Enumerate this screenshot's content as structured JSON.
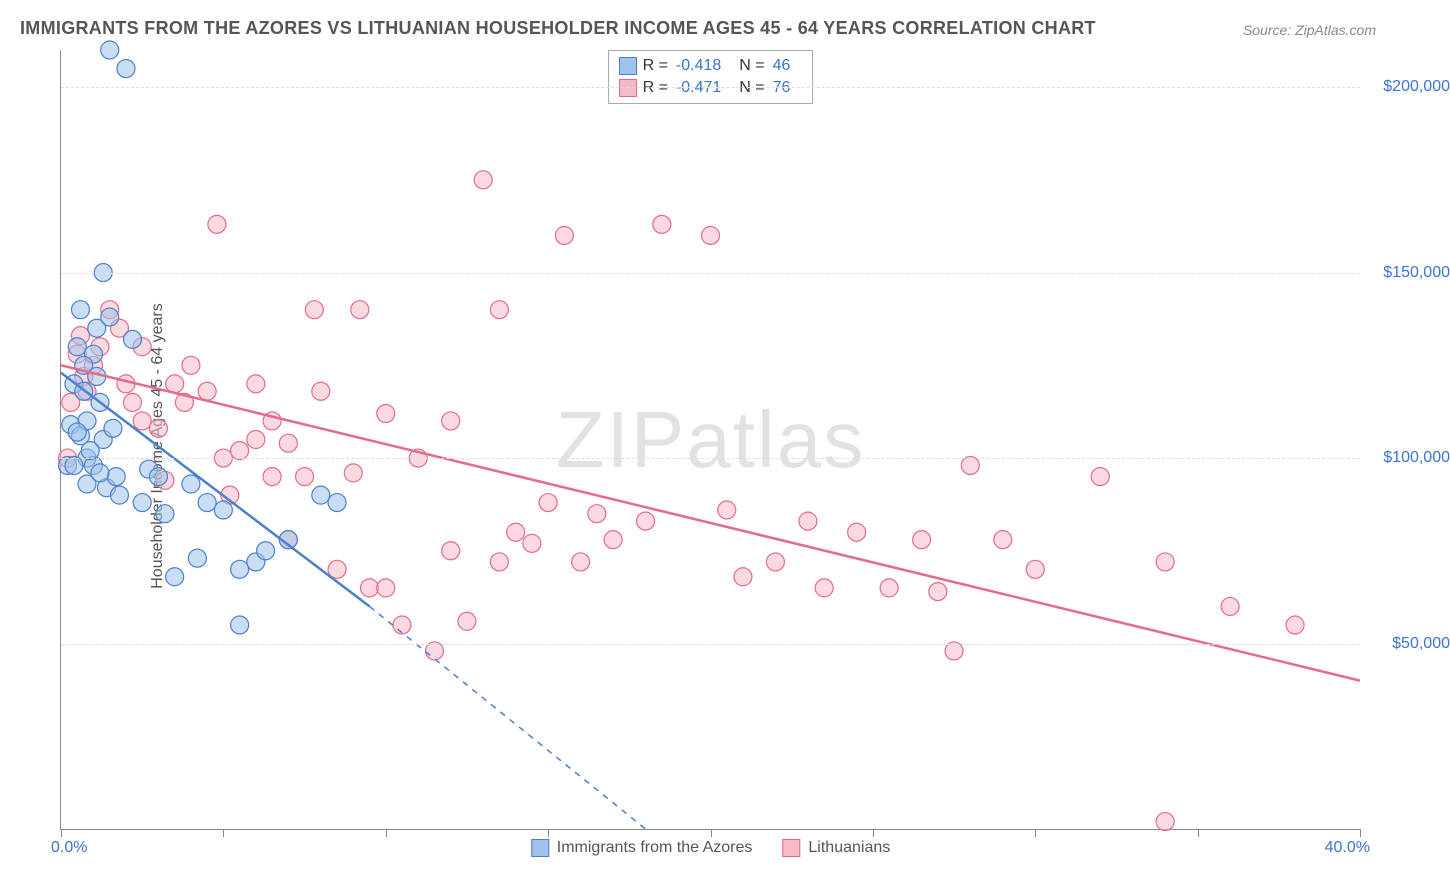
{
  "title": "IMMIGRANTS FROM THE AZORES VS LITHUANIAN HOUSEHOLDER INCOME AGES 45 - 64 YEARS CORRELATION CHART",
  "source": "Source: ZipAtlas.com",
  "watermark": "ZIPatlas",
  "ylabel": "Householder Income Ages 45 - 64 years",
  "x_left": "0.0%",
  "x_right": "40.0%",
  "chart": {
    "type": "scatter-with-regression",
    "background_color": "#ffffff",
    "grid_color": "#dddddd",
    "axis_color": "#888888",
    "title_fontsize": 18,
    "label_fontsize": 16,
    "tick_label_color": "#3b74d1",
    "xlim": [
      0,
      40
    ],
    "ylim": [
      0,
      210000
    ],
    "y_ticks": [
      50000,
      100000,
      150000,
      200000
    ],
    "y_tick_labels": [
      "$50,000",
      "$100,000",
      "$150,000",
      "$200,000"
    ],
    "x_tick_positions": [
      0,
      5,
      10,
      15,
      20,
      25,
      30,
      35,
      40
    ],
    "point_radius": 9,
    "point_opacity": 0.55,
    "line_width": 2.5,
    "series": [
      {
        "name": "Immigrants from the Azores",
        "color_fill": "#9fc2ea",
        "color_stroke": "#4a80cc",
        "r_value": "-0.418",
        "n_value": "46",
        "regression": {
          "x1": 0,
          "y1": 123000,
          "x2": 9.5,
          "y2": 60000,
          "solid_until_x": 9.5,
          "dash_to_x": 18,
          "dash_to_y": 0
        },
        "points": [
          [
            0.2,
            98000
          ],
          [
            0.3,
            109000
          ],
          [
            0.4,
            120000
          ],
          [
            0.5,
            130000
          ],
          [
            0.6,
            140000
          ],
          [
            0.7,
            118000
          ],
          [
            0.8,
            100000
          ],
          [
            1.0,
            128000
          ],
          [
            1.1,
            135000
          ],
          [
            1.2,
            115000
          ],
          [
            1.3,
            105000
          ],
          [
            1.4,
            92000
          ],
          [
            1.5,
            138000
          ],
          [
            1.6,
            108000
          ],
          [
            1.7,
            95000
          ],
          [
            1.8,
            90000
          ],
          [
            1.3,
            150000
          ],
          [
            1.5,
            210000
          ],
          [
            2.0,
            205000
          ],
          [
            2.2,
            132000
          ],
          [
            2.5,
            88000
          ],
          [
            2.7,
            97000
          ],
          [
            3.0,
            95000
          ],
          [
            3.2,
            85000
          ],
          [
            3.5,
            68000
          ],
          [
            4.0,
            93000
          ],
          [
            4.2,
            73000
          ],
          [
            4.5,
            88000
          ],
          [
            5.0,
            86000
          ],
          [
            5.5,
            55000
          ],
          [
            5.5,
            70000
          ],
          [
            6.0,
            72000
          ],
          [
            6.3,
            75000
          ],
          [
            7.0,
            78000
          ],
          [
            8.0,
            90000
          ],
          [
            8.5,
            88000
          ],
          [
            1.0,
            98000
          ],
          [
            0.9,
            102000
          ],
          [
            0.6,
            106000
          ],
          [
            0.7,
            125000
          ],
          [
            0.8,
            110000
          ],
          [
            0.8,
            93000
          ],
          [
            0.5,
            107000
          ],
          [
            0.4,
            98000
          ],
          [
            1.1,
            122000
          ],
          [
            1.2,
            96000
          ]
        ]
      },
      {
        "name": "Lithuanians",
        "color_fill": "#f5b9c7",
        "color_stroke": "#e66a8b",
        "r_value": "-0.471",
        "n_value": "76",
        "regression": {
          "x1": 0,
          "y1": 125000,
          "x2": 40,
          "y2": 40000,
          "solid_until_x": 40
        },
        "points": [
          [
            0.2,
            100000
          ],
          [
            0.3,
            115000
          ],
          [
            0.5,
            128000
          ],
          [
            0.6,
            133000
          ],
          [
            0.7,
            122000
          ],
          [
            0.8,
            118000
          ],
          [
            1.0,
            125000
          ],
          [
            1.2,
            130000
          ],
          [
            1.5,
            140000
          ],
          [
            1.8,
            135000
          ],
          [
            2.0,
            120000
          ],
          [
            2.2,
            115000
          ],
          [
            2.5,
            110000
          ],
          [
            2.5,
            130000
          ],
          [
            3.0,
            108000
          ],
          [
            3.2,
            94000
          ],
          [
            3.5,
            120000
          ],
          [
            3.8,
            115000
          ],
          [
            4.0,
            125000
          ],
          [
            4.5,
            118000
          ],
          [
            4.8,
            163000
          ],
          [
            5.0,
            100000
          ],
          [
            5.2,
            90000
          ],
          [
            5.5,
            102000
          ],
          [
            6.0,
            105000
          ],
          [
            6.0,
            120000
          ],
          [
            6.5,
            95000
          ],
          [
            6.5,
            110000
          ],
          [
            7.0,
            78000
          ],
          [
            7.0,
            104000
          ],
          [
            7.5,
            95000
          ],
          [
            7.8,
            140000
          ],
          [
            8.0,
            118000
          ],
          [
            8.5,
            70000
          ],
          [
            9.0,
            96000
          ],
          [
            9.2,
            140000
          ],
          [
            9.5,
            65000
          ],
          [
            10.0,
            65000
          ],
          [
            10.0,
            112000
          ],
          [
            10.5,
            55000
          ],
          [
            11.0,
            100000
          ],
          [
            11.5,
            48000
          ],
          [
            12.0,
            75000
          ],
          [
            12.0,
            110000
          ],
          [
            12.5,
            56000
          ],
          [
            13.0,
            175000
          ],
          [
            13.5,
            72000
          ],
          [
            13.5,
            140000
          ],
          [
            14.0,
            80000
          ],
          [
            14.5,
            77000
          ],
          [
            15.0,
            88000
          ],
          [
            15.5,
            160000
          ],
          [
            16.0,
            72000
          ],
          [
            16.5,
            85000
          ],
          [
            17.0,
            78000
          ],
          [
            18.0,
            83000
          ],
          [
            18.5,
            163000
          ],
          [
            20.0,
            160000
          ],
          [
            20.5,
            86000
          ],
          [
            21.0,
            68000
          ],
          [
            22.0,
            72000
          ],
          [
            23.0,
            83000
          ],
          [
            23.5,
            65000
          ],
          [
            24.5,
            80000
          ],
          [
            25.5,
            65000
          ],
          [
            26.5,
            78000
          ],
          [
            27.0,
            64000
          ],
          [
            27.5,
            48000
          ],
          [
            28.0,
            98000
          ],
          [
            29.0,
            78000
          ],
          [
            30.0,
            70000
          ],
          [
            32.0,
            95000
          ],
          [
            34.0,
            72000
          ],
          [
            34.0,
            2000
          ],
          [
            36.0,
            60000
          ],
          [
            38.0,
            55000
          ]
        ]
      }
    ]
  },
  "legend_series1": "Immigrants from the Azores",
  "legend_series2": "Lithuanians",
  "r_label": "R =",
  "n_label": "N ="
}
